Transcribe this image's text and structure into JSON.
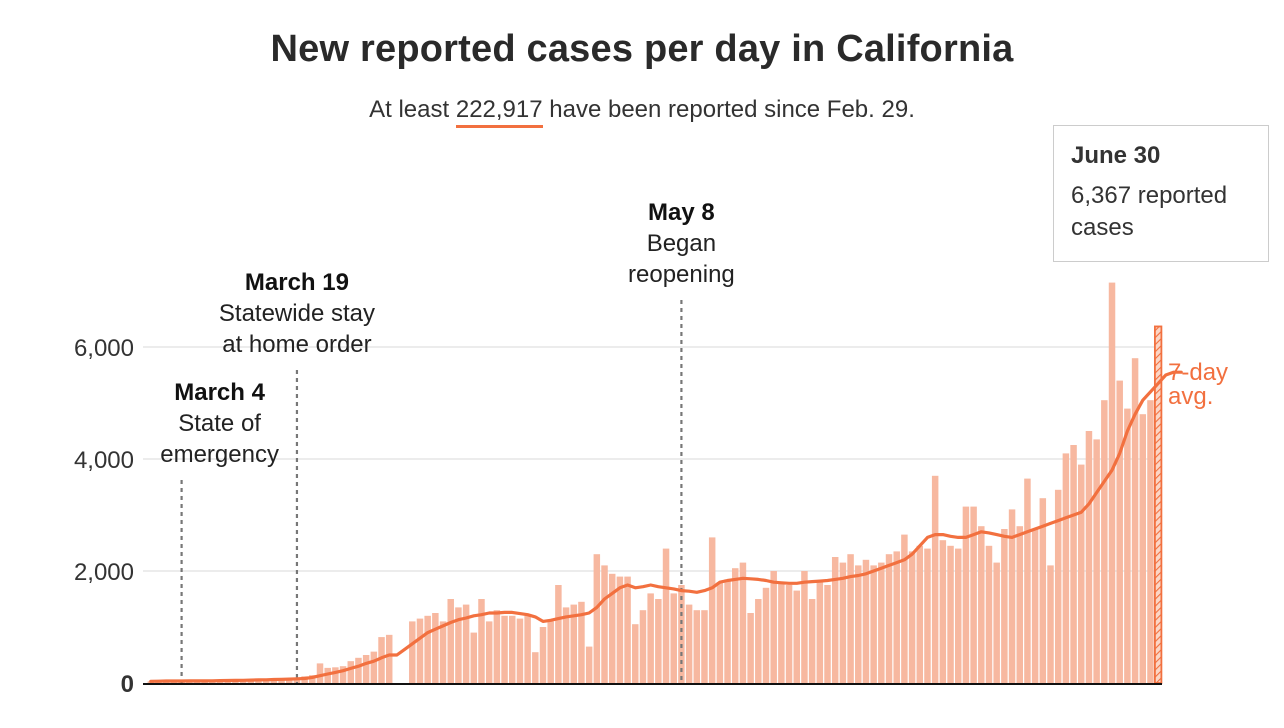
{
  "title": "New reported cases per day in California",
  "subtitle": {
    "prefix": "At least ",
    "total": "222,917",
    "suffix": " have been reported since Feb. 29."
  },
  "tooltip": {
    "date": "June 30",
    "text": "6,367 reported cases"
  },
  "avg_label": [
    "7-day",
    "avg."
  ],
  "colors": {
    "bar": "#f7b8a0",
    "line": "#f2703f",
    "highlight": "#f2703f",
    "grid": "#e6e6e6",
    "axis": "#111111",
    "annotation_line": "#777777"
  },
  "annotations": [
    {
      "date": "March 4",
      "lines": [
        "State of",
        "emergency"
      ],
      "day_index": 4
    },
    {
      "date": "March 19",
      "lines": [
        "Statewide stay",
        "at home order"
      ],
      "day_index": 19
    },
    {
      "date": "May 8",
      "lines": [
        "Began",
        "reopening"
      ],
      "day_index": 69
    }
  ],
  "chart_data": {
    "type": "bar",
    "x_start": "Feb. 29",
    "x_end": "June 30",
    "ylim": [
      0,
      7500
    ],
    "yticks": [
      0,
      2000,
      4000,
      6000
    ],
    "ytick_labels": [
      "0",
      "2,000",
      "4,000",
      "6,000"
    ],
    "grid": true,
    "series": [
      {
        "type": "bar",
        "values": [
          30,
          35,
          40,
          30,
          40,
          45,
          35,
          40,
          45,
          50,
          55,
          60,
          60,
          65,
          70,
          75,
          80,
          85,
          90,
          95,
          120,
          140,
          350,
          270,
          280,
          300,
          390,
          450,
          500,
          560,
          820,
          860,
          0,
          0,
          1100,
          1150,
          1200,
          1250,
          1100,
          1500,
          1350,
          1400,
          900,
          1500,
          1100,
          1300,
          1200,
          1200,
          1150,
          1200,
          550,
          1000,
          1100,
          1750,
          1350,
          1400,
          1450,
          650,
          2300,
          2100,
          1950,
          1900,
          1900,
          1050,
          1300,
          1600,
          1500,
          2400,
          1600,
          1750,
          1400,
          1300,
          1300,
          2600,
          1800,
          1850,
          2050,
          2150,
          1250,
          1500,
          1700,
          2000,
          1800,
          1750,
          1650,
          2000,
          1500,
          1800,
          1750,
          2250,
          2150,
          2300,
          2100,
          2200,
          2100,
          2150,
          2300,
          2350,
          2650,
          2350,
          2450,
          2400,
          3700,
          2550,
          2450,
          2400,
          3150,
          3150,
          2800,
          2450,
          2150,
          2750,
          3100,
          2800,
          3650,
          2750,
          3300,
          2100,
          3450,
          4100,
          4250,
          3900,
          4500,
          4350,
          5050,
          7150,
          5400,
          4900,
          5800,
          4800,
          5050,
          6367
        ],
        "highlight_last": true
      },
      {
        "name": "7-day avg.",
        "type": "line",
        "values": [
          30,
          32,
          35,
          35,
          36,
          37,
          38,
          38,
          40,
          42,
          44,
          46,
          48,
          52,
          55,
          58,
          62,
          66,
          70,
          75,
          80,
          100,
          130,
          160,
          190,
          220,
          260,
          300,
          350,
          390,
          450,
          500,
          500,
          600,
          700,
          800,
          900,
          960,
          1020,
          1080,
          1130,
          1160,
          1200,
          1220,
          1250,
          1250,
          1260,
          1260,
          1240,
          1220,
          1180,
          1100,
          1120,
          1150,
          1180,
          1200,
          1220,
          1250,
          1350,
          1500,
          1600,
          1700,
          1750,
          1700,
          1720,
          1750,
          1720,
          1700,
          1680,
          1650,
          1640,
          1620,
          1650,
          1700,
          1800,
          1830,
          1850,
          1870,
          1860,
          1850,
          1830,
          1800,
          1790,
          1780,
          1780,
          1800,
          1810,
          1820,
          1830,
          1850,
          1870,
          1900,
          1920,
          1950,
          2000,
          2050,
          2100,
          2150,
          2200,
          2300,
          2450,
          2600,
          2650,
          2650,
          2620,
          2600,
          2600,
          2650,
          2700,
          2680,
          2650,
          2620,
          2600,
          2650,
          2700,
          2750,
          2800,
          2850,
          2900,
          2950,
          3000,
          3050,
          3200,
          3400,
          3600,
          3800,
          4100,
          4500,
          4800,
          5050,
          5200,
          5350,
          5500,
          5550,
          5550
        ]
      }
    ]
  }
}
